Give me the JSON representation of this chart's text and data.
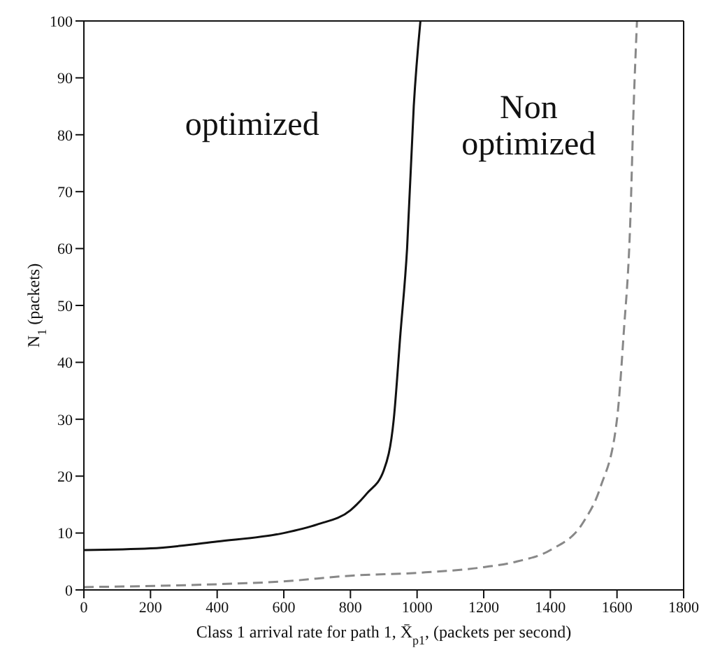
{
  "chart_data": {
    "type": "line",
    "xlabel": "Class 1 arrival rate for path 1, X̄$_{p1}$, (packets per second)",
    "ylabel": "N$_{1}$ (packets)",
    "xlim": [
      0,
      1800
    ],
    "xticks": [
      0,
      200,
      400,
      600,
      800,
      1000,
      1200,
      1400,
      1600,
      1800
    ],
    "ylim": [
      0,
      100
    ],
    "yticks": [
      0,
      10,
      20,
      30,
      40,
      50,
      60,
      70,
      80,
      90,
      100
    ],
    "grid": false,
    "legend": false,
    "marker": "none",
    "series": [
      {
        "name": "optimized",
        "color": "#111111",
        "line_style": "solid",
        "x": [
          0,
          200,
          400,
          600,
          700,
          800,
          850,
          900,
          930,
          950,
          970,
          990,
          1010
        ],
        "values": [
          7,
          7.3,
          8.5,
          10,
          11.5,
          14,
          17,
          21,
          30,
          45,
          60,
          85,
          100
        ]
      },
      {
        "name": "Non optimized",
        "color": "#888888",
        "line_style": "dashed",
        "x": [
          0,
          400,
          600,
          800,
          1000,
          1200,
          1300,
          1400,
          1500,
          1550,
          1600,
          1620,
          1640,
          1650,
          1660
        ],
        "values": [
          0.5,
          1,
          1.5,
          2.5,
          3,
          4,
          5,
          7,
          12,
          18,
          30,
          45,
          65,
          85,
          100
        ]
      }
    ]
  }
}
